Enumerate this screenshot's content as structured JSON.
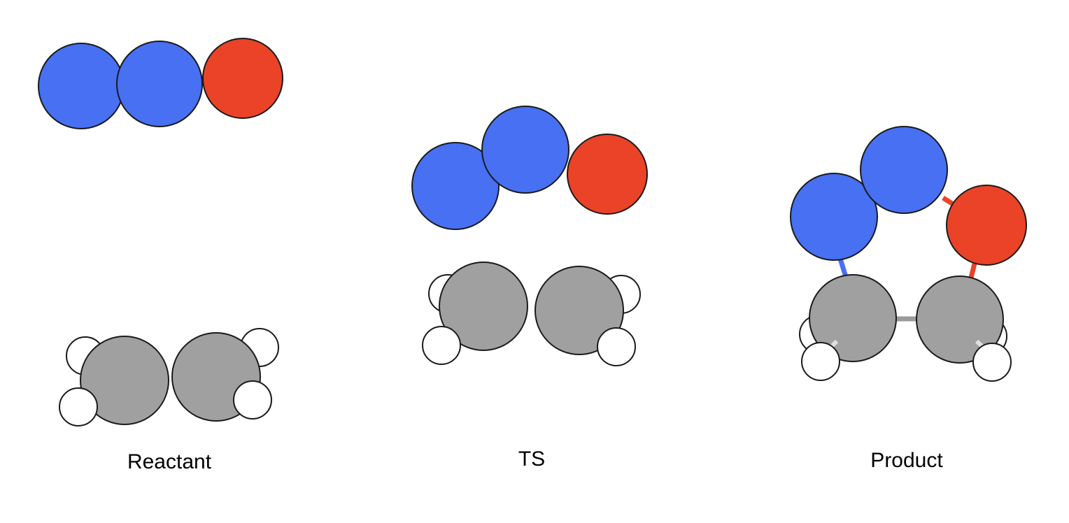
{
  "labels": {
    "reactant": "Reactant",
    "ts": "TS",
    "product": "Product"
  },
  "colors": {
    "nitrogen_blue": "#4770f2",
    "oxygen_red": "#ea4327",
    "carbon_gray": "#a0a0a0",
    "hydrogen_white": "#ffffff",
    "outline": "#1a1a1a",
    "bond_gray": "#9a9a9a",
    "bond_blue": "#4770f2",
    "bond_red": "#ea4327",
    "bond_light": "#e0e0e0"
  },
  "panels": [
    {
      "name": "reactant",
      "atoms": [
        "hydrogen",
        "hydrogen",
        "hydrogen",
        "hydrogen",
        "carbon",
        "carbon",
        "nitrogen",
        "nitrogen",
        "oxygen"
      ]
    },
    {
      "name": "ts",
      "atoms": [
        "hydrogen",
        "hydrogen",
        "hydrogen",
        "hydrogen",
        "carbon",
        "carbon",
        "nitrogen",
        "nitrogen",
        "oxygen"
      ]
    },
    {
      "name": "product",
      "atoms": [
        "hydrogen",
        "hydrogen",
        "hydrogen",
        "hydrogen",
        "carbon",
        "carbon",
        "nitrogen",
        "nitrogen",
        "oxygen"
      ]
    }
  ]
}
